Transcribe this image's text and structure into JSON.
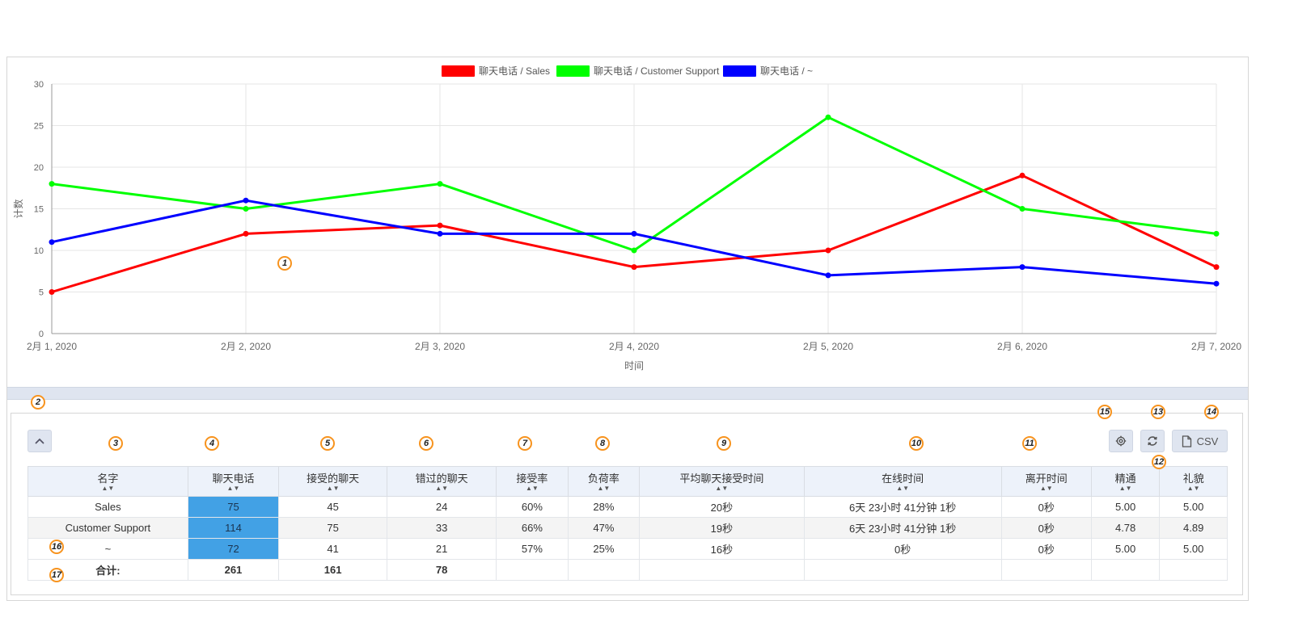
{
  "chart_data": {
    "type": "line",
    "ylabel": "计数",
    "xlabel": "时间",
    "ylim": [
      0,
      30
    ],
    "yticks": [
      0,
      5,
      10,
      15,
      20,
      25,
      30
    ],
    "x": [
      "2月 1, 2020",
      "2月 2, 2020",
      "2月 3, 2020",
      "2月 4, 2020",
      "2月 5, 2020",
      "2月 6, 2020",
      "2月 7, 2020"
    ],
    "grid": true,
    "legend_position": "top-center",
    "series": [
      {
        "name": "聊天电话 / Sales",
        "color": "#ff0000",
        "values": [
          5,
          12,
          13,
          8,
          10,
          19,
          8
        ]
      },
      {
        "name": "聊天电话 / Customer Support",
        "color": "#00ff00",
        "values": [
          18,
          15,
          18,
          10,
          26,
          15,
          12
        ]
      },
      {
        "name": "聊天电话 / ~",
        "color": "#0000ff",
        "values": [
          11,
          16,
          12,
          12,
          7,
          8,
          6
        ]
      }
    ]
  },
  "table": {
    "headers": [
      "名字",
      "聊天电话",
      "接受的聊天",
      "错过的聊天",
      "接受率",
      "负荷率",
      "平均聊天接受时间",
      "在线时间",
      "离开时间",
      "精通",
      "礼貌"
    ],
    "rows": [
      [
        "Sales",
        "75",
        "45",
        "24",
        "60%",
        "28%",
        "20秒",
        "6天 23小时 41分钟 1秒",
        "0秒",
        "5.00",
        "5.00"
      ],
      [
        "Customer Support",
        "114",
        "75",
        "33",
        "66%",
        "47%",
        "19秒",
        "6天 23小时 41分钟 1秒",
        "0秒",
        "4.78",
        "4.89"
      ],
      [
        "~",
        "72",
        "41",
        "21",
        "57%",
        "25%",
        "16秒",
        "0秒",
        "0秒",
        "5.00",
        "5.00"
      ]
    ],
    "total": [
      "合计:",
      "261",
      "161",
      "78",
      "",
      "",
      "",
      "",
      "",
      "",
      ""
    ],
    "sort_glyph": "▲▼"
  },
  "toolbar": {
    "csv_label": "CSV",
    "settings_icon": "gear-icon",
    "refresh_icon": "refresh-icon",
    "file_icon": "file-icon",
    "collapse_icon": "chevron-up-icon"
  },
  "badges": [
    "1",
    "2",
    "3",
    "4",
    "5",
    "6",
    "7",
    "8",
    "9",
    "10",
    "11",
    "12",
    "13",
    "14",
    "15",
    "16",
    "17"
  ],
  "colors": {
    "highlight_cell": "#42a1e5",
    "header_bg": "#edf2fa",
    "badge_border": "#f7931e"
  }
}
